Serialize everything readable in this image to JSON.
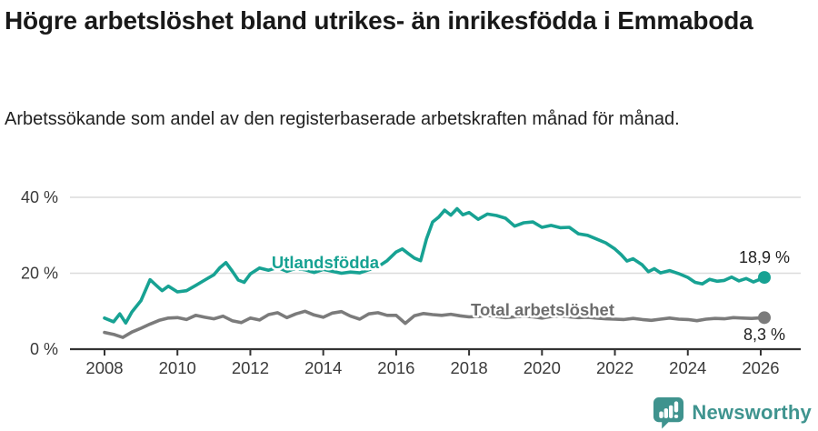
{
  "header": {
    "title": "Högre arbetslöshet bland utrikes- än inrikesfödda i Emmaboda",
    "subtitle": "Arbetssökande som andel av den registerbaserade arbetskraften månad för månad."
  },
  "chart_data": {
    "type": "line",
    "title": "Högre arbetslöshet bland utrikes- än inrikesfödda i Emmaboda",
    "subtitle": "Arbetssökande som andel av den registerbaserade arbetskraften månad för månad.",
    "unit": "%",
    "grid": "horizontal",
    "legend_position": "inline-labels",
    "x_axis": {
      "ticks": [
        2008,
        2010,
        2012,
        2014,
        2016,
        2018,
        2020,
        2022,
        2024,
        2026
      ],
      "tick_labels": [
        "2008",
        "2010",
        "2012",
        "2014",
        "2016",
        "2018",
        "2020",
        "2022",
        "2024",
        "2026"
      ],
      "range": [
        2008,
        2026.1
      ]
    },
    "y_axis": {
      "ticks": [
        0,
        20,
        40
      ],
      "tick_labels": [
        "0 %",
        "20 %",
        "40 %"
      ],
      "ylim": [
        0,
        44
      ]
    },
    "series": [
      {
        "name": "Utlandsfödda",
        "color": "#17a293",
        "label_color": "#17a293",
        "end_value": 18.9,
        "end_label": "18,9 %",
        "x": [
          2008.0,
          2008.25,
          2008.42,
          2008.58,
          2008.75,
          2009.0,
          2009.25,
          2009.42,
          2009.58,
          2009.75,
          2010.0,
          2010.25,
          2010.5,
          2010.75,
          2011.0,
          2011.17,
          2011.33,
          2011.5,
          2011.67,
          2011.83,
          2012.0,
          2012.25,
          2012.5,
          2012.75,
          2013.0,
          2013.25,
          2013.5,
          2013.75,
          2014.0,
          2014.25,
          2014.5,
          2014.75,
          2015.0,
          2015.25,
          2015.5,
          2015.75,
          2016.0,
          2016.17,
          2016.33,
          2016.5,
          2016.67,
          2016.83,
          2017.0,
          2017.17,
          2017.33,
          2017.5,
          2017.67,
          2017.83,
          2018.0,
          2018.25,
          2018.5,
          2018.75,
          2019.0,
          2019.25,
          2019.5,
          2019.75,
          2020.0,
          2020.25,
          2020.5,
          2020.75,
          2021.0,
          2021.25,
          2021.5,
          2021.75,
          2022.0,
          2022.17,
          2022.33,
          2022.5,
          2022.75,
          2022.92,
          2023.08,
          2023.25,
          2023.5,
          2023.75,
          2024.0,
          2024.2,
          2024.4,
          2024.6,
          2024.8,
          2025.0,
          2025.2,
          2025.4,
          2025.6,
          2025.8,
          2026.0,
          2026.1
        ],
        "y": [
          8.2,
          7.2,
          9.3,
          6.9,
          9.8,
          12.8,
          18.3,
          16.8,
          15.4,
          16.6,
          15.1,
          15.4,
          16.8,
          18.2,
          19.6,
          21.5,
          22.8,
          20.6,
          18.2,
          17.6,
          19.8,
          21.4,
          20.8,
          21.5,
          20.5,
          21.3,
          20.9,
          20.2,
          21.0,
          20.5,
          20.0,
          20.3,
          20.1,
          20.9,
          21.7,
          23.3,
          25.6,
          26.4,
          25.2,
          24.0,
          23.3,
          29.0,
          33.5,
          34.8,
          36.6,
          35.3,
          37.0,
          35.4,
          36.0,
          34.2,
          35.6,
          35.2,
          34.5,
          32.4,
          33.3,
          33.5,
          32.1,
          32.6,
          32.0,
          32.1,
          30.4,
          30.0,
          29.0,
          28.0,
          26.4,
          24.9,
          23.2,
          23.8,
          22.2,
          20.4,
          21.2,
          20.1,
          20.7,
          19.9,
          18.9,
          17.6,
          17.2,
          18.4,
          17.9,
          18.1,
          19.0,
          18.0,
          18.6,
          17.7,
          18.5,
          18.9
        ]
      },
      {
        "name": "Total arbetslöshet",
        "color": "#7b7b7b",
        "label_color": "#6d6d6d",
        "end_value": 8.3,
        "end_label": "8,3 %",
        "x": [
          2008.0,
          2008.25,
          2008.5,
          2008.75,
          2009.0,
          2009.25,
          2009.5,
          2009.75,
          2010.0,
          2010.25,
          2010.5,
          2010.75,
          2011.0,
          2011.25,
          2011.5,
          2011.75,
          2012.0,
          2012.25,
          2012.5,
          2012.75,
          2013.0,
          2013.25,
          2013.5,
          2013.75,
          2014.0,
          2014.25,
          2014.5,
          2014.75,
          2015.0,
          2015.25,
          2015.5,
          2015.75,
          2016.0,
          2016.25,
          2016.5,
          2016.75,
          2017.0,
          2017.25,
          2017.5,
          2017.75,
          2018.0,
          2018.25,
          2018.5,
          2018.75,
          2019.0,
          2019.25,
          2019.5,
          2019.75,
          2020.0,
          2020.25,
          2020.5,
          2020.75,
          2021.0,
          2021.25,
          2021.5,
          2021.75,
          2022.0,
          2022.25,
          2022.5,
          2022.75,
          2023.0,
          2023.25,
          2023.5,
          2023.75,
          2024.0,
          2024.25,
          2024.5,
          2024.75,
          2025.0,
          2025.25,
          2025.5,
          2025.75,
          2026.1
        ],
        "y": [
          4.4,
          3.9,
          3.1,
          4.5,
          5.5,
          6.6,
          7.6,
          8.2,
          8.3,
          7.8,
          8.9,
          8.4,
          8.0,
          8.7,
          7.5,
          7.0,
          8.2,
          7.7,
          9.1,
          9.6,
          8.3,
          9.3,
          10.0,
          9.0,
          8.4,
          9.5,
          9.9,
          8.7,
          7.9,
          9.3,
          9.6,
          8.9,
          8.9,
          6.8,
          8.8,
          9.4,
          9.1,
          8.9,
          9.2,
          8.8,
          8.5,
          8.6,
          8.9,
          8.6,
          8.3,
          8.5,
          8.7,
          8.5,
          8.2,
          8.6,
          8.8,
          8.5,
          8.3,
          8.4,
          8.2,
          8.0,
          7.9,
          7.8,
          8.1,
          7.8,
          7.6,
          7.9,
          8.2,
          7.9,
          7.8,
          7.5,
          7.9,
          8.1,
          8.0,
          8.3,
          8.2,
          8.1,
          8.3
        ]
      }
    ]
  },
  "footer": {
    "brand": "Newsworthy",
    "logo_color": "#3f938e"
  }
}
